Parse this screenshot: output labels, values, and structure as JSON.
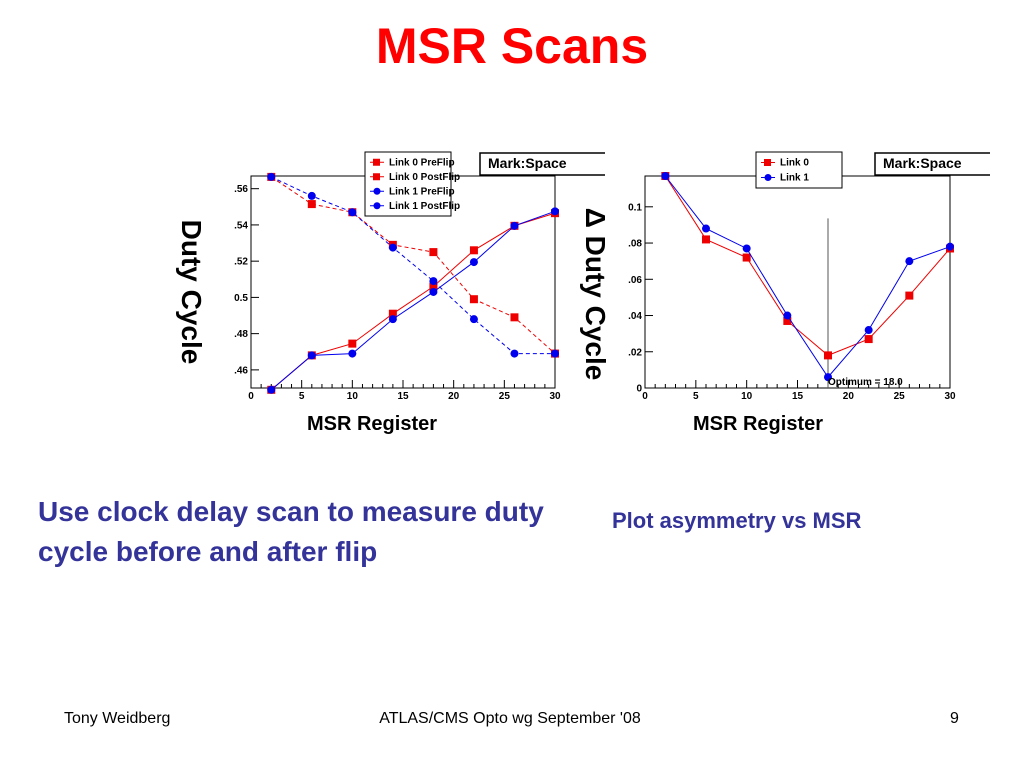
{
  "slide": {
    "title": "MSR Scans",
    "caption_left": "Use clock delay scan to measure duty cycle before and after flip",
    "caption_right": "Plot asymmetry vs MSR",
    "footer_left": "Tony Weidberg",
    "footer_center": "ATLAS/CMS Opto wg September '08",
    "footer_right": "9"
  },
  "chart_data": [
    {
      "type": "line",
      "title": "Mark:Space",
      "xlabel": "MSR Register",
      "ylabel": "Duty Cycle",
      "xlim": [
        0,
        30
      ],
      "ylim": [
        0.45,
        0.567
      ],
      "xticks": [
        0,
        5,
        10,
        15,
        20,
        25,
        30
      ],
      "yticks": [
        0.46,
        0.48,
        0.5,
        0.52,
        0.54,
        0.56
      ],
      "ytick_labels": [
        ".46",
        ".48",
        "0.5",
        ".52",
        ".54",
        ".56"
      ],
      "legend_position": "top-center",
      "grid": false,
      "x": [
        2,
        6,
        10,
        14,
        18,
        22,
        26,
        30
      ],
      "series": [
        {
          "name": "Link 0 PreFlip",
          "color": "#ee0000",
          "marker": "square",
          "dash": false,
          "values": [
            0.449,
            0.468,
            0.4745,
            0.491,
            0.506,
            0.526,
            0.5395,
            0.5465
          ]
        },
        {
          "name": "Link 0 PostFlip",
          "color": "#ee0000",
          "marker": "square",
          "dash": true,
          "values": [
            0.5665,
            0.5515,
            0.547,
            0.529,
            0.525,
            0.499,
            0.489,
            0.469
          ]
        },
        {
          "name": "Link 1 PreFlip",
          "color": "#0000ee",
          "marker": "circle",
          "dash": false,
          "values": [
            0.449,
            0.468,
            0.469,
            0.488,
            0.503,
            0.5195,
            0.5395,
            0.5475
          ]
        },
        {
          "name": "Link 1 PostFlip",
          "color": "#0000ee",
          "marker": "circle",
          "dash": true,
          "values": [
            0.5665,
            0.556,
            0.547,
            0.5275,
            0.509,
            0.488,
            0.469,
            0.469
          ]
        }
      ]
    },
    {
      "type": "line",
      "title": "Mark:Space",
      "xlabel": "MSR Register",
      "ylabel": "Δ Duty Cycle",
      "xlim": [
        0,
        30
      ],
      "ylim": [
        0,
        0.117
      ],
      "xticks": [
        0,
        5,
        10,
        15,
        20,
        25,
        30
      ],
      "yticks": [
        0,
        0.02,
        0.04,
        0.06,
        0.08,
        0.1
      ],
      "ytick_labels": [
        "0",
        ".02",
        ".04",
        ".06",
        ".08",
        "0.1"
      ],
      "legend_position": "top-center",
      "grid": false,
      "annotation": "Optimum = 18.0",
      "optimum_x": 18,
      "x": [
        2,
        6,
        10,
        14,
        18,
        22,
        26,
        30
      ],
      "series": [
        {
          "name": "Link 0",
          "color": "#ee0000",
          "marker": "square",
          "dash": false,
          "values": [
            0.117,
            0.082,
            0.072,
            0.037,
            0.018,
            0.027,
            0.051,
            0.077
          ]
        },
        {
          "name": "Link 1",
          "color": "#0000ee",
          "marker": "circle",
          "dash": false,
          "values": [
            0.117,
            0.088,
            0.077,
            0.04,
            0.006,
            0.032,
            0.07,
            0.078
          ]
        }
      ]
    }
  ]
}
